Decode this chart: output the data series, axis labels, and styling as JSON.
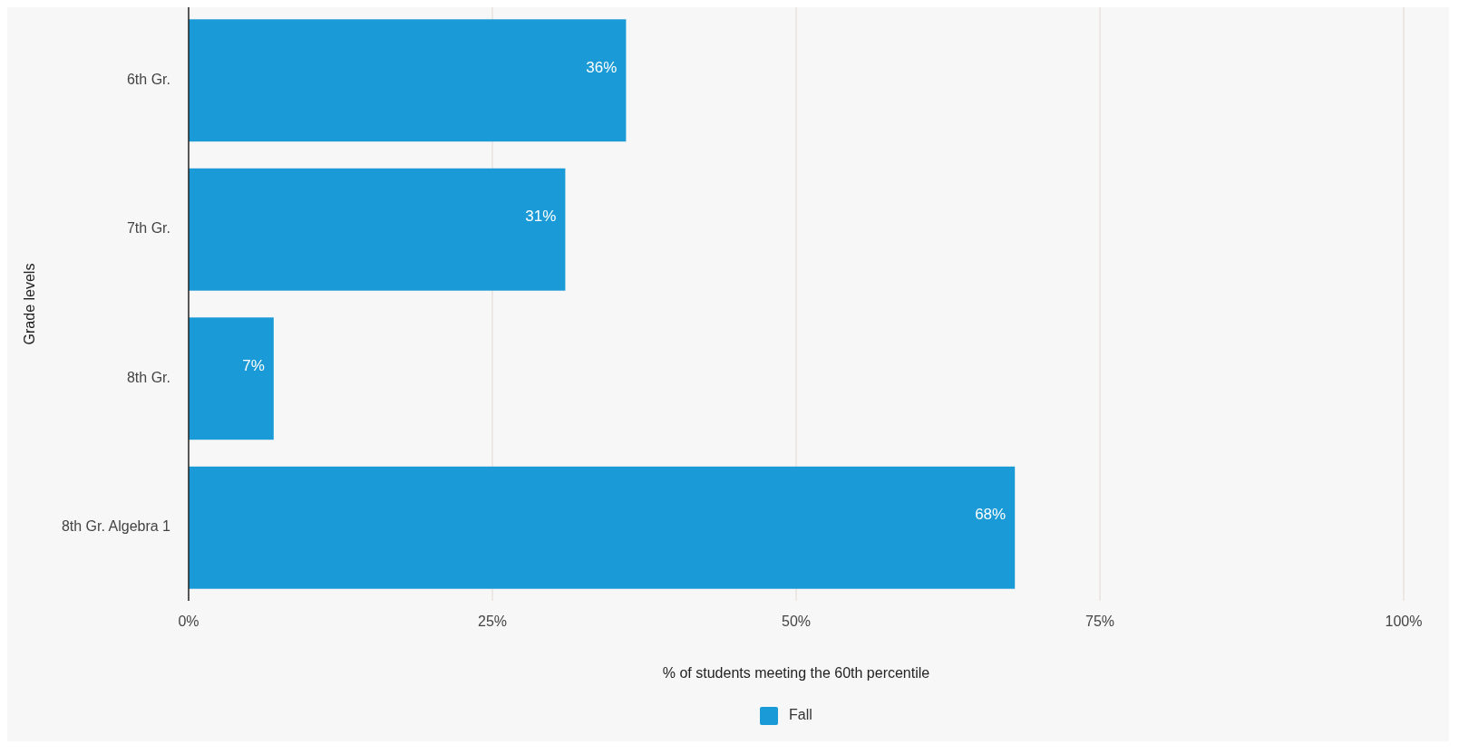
{
  "chart_data": {
    "type": "bar",
    "orientation": "horizontal",
    "xlabel": "% of students meeting the 60th percentile",
    "ylabel": "Grade levels",
    "categories": [
      "6th Gr.",
      "7th Gr.",
      "8th Gr.",
      "8th Gr. Algebra 1"
    ],
    "series": [
      {
        "name": "Fall",
        "color": "#1a9ad6",
        "values": [
          36,
          31,
          7,
          68
        ],
        "value_labels": [
          "36%",
          "31%",
          "7%",
          "68%"
        ]
      }
    ],
    "xlim": [
      0,
      100
    ],
    "xticks": [
      {
        "value": 0,
        "label": "0%"
      },
      {
        "value": 25,
        "label": "25%"
      },
      {
        "value": 50,
        "label": "50%"
      },
      {
        "value": 75,
        "label": "75%"
      },
      {
        "value": 100,
        "label": "100%"
      }
    ],
    "grid": "x",
    "legend": "bottom"
  }
}
